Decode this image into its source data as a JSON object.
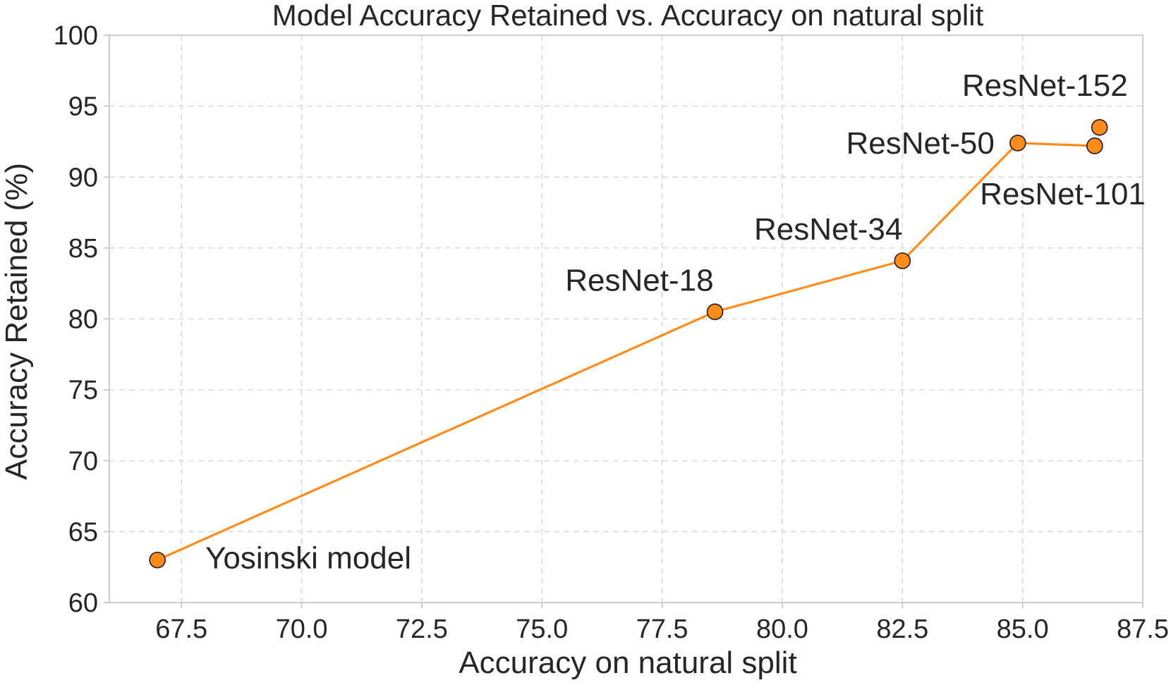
{
  "chart_data": {
    "type": "line",
    "title": "Model Accuracy Retained vs. Accuracy on natural split",
    "xlabel": "Accuracy on natural split",
    "ylabel": "Accuracy Retained (%)",
    "xlim": [
      66.0,
      87.5
    ],
    "ylim": [
      60,
      100
    ],
    "x_ticks": [
      "67.5",
      "70.0",
      "72.5",
      "75.0",
      "77.5",
      "80.0",
      "82.5",
      "85.0",
      "87.5"
    ],
    "y_ticks": [
      "60",
      "65",
      "70",
      "75",
      "80",
      "85",
      "90",
      "95",
      "100"
    ],
    "grid": true,
    "line_color": "#ff8c1a",
    "marker_color": "#ff8c1a",
    "series": [
      {
        "points": [
          {
            "label": "Yosinski model",
            "x": 67.0,
            "y": 63.0,
            "label_color": "#ff0000"
          },
          {
            "label": "ResNet-18",
            "x": 78.6,
            "y": 80.5,
            "label_color": "#262626"
          },
          {
            "label": "ResNet-34",
            "x": 82.5,
            "y": 84.1,
            "label_color": "#262626"
          },
          {
            "label": "ResNet-50",
            "x": 84.9,
            "y": 92.4,
            "label_color": "#262626"
          },
          {
            "label": "ResNet-101",
            "x": 86.5,
            "y": 92.2,
            "label_color": "#262626"
          },
          {
            "label": "ResNet-152",
            "x": 86.6,
            "y": 93.5,
            "label_color": "#262626"
          }
        ],
        "line_through": [
          "Yosinski model",
          "ResNet-18",
          "ResNet-34",
          "ResNet-50",
          "ResNet-101"
        ]
      }
    ]
  }
}
